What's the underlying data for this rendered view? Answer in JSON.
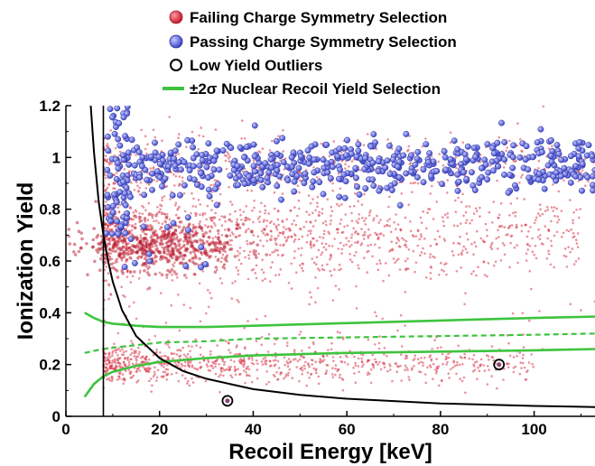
{
  "chart_data": {
    "type": "scatter",
    "title": "",
    "xlabel": "Recoil Energy [keV]",
    "ylabel": "Ionization Yield",
    "xlim": [
      0,
      113
    ],
    "ylim": [
      0,
      1.2
    ],
    "xticks": [
      0,
      20,
      40,
      60,
      80,
      100
    ],
    "yticks": [
      0,
      0.2,
      0.4,
      0.6,
      0.8,
      1,
      1.2
    ],
    "grid": false,
    "legend_position": "top",
    "legend": [
      {
        "label": "Failing Charge Symmetry Selection",
        "marker": "red-dot",
        "color": "#d9394a"
      },
      {
        "label": "Passing Charge Symmetry Selection",
        "marker": "blue-dot",
        "color": "#6b74e8"
      },
      {
        "label": "Low Yield Outliers",
        "marker": "open-circle",
        "color": "#000000"
      },
      {
        "label": "±2σ Nuclear Recoil Yield Selection",
        "marker": "green-line",
        "color": "#3ec43e"
      }
    ],
    "threshold_energy_keV": 8,
    "nr_band": {
      "x": [
        4,
        6,
        8,
        10,
        15,
        20,
        30,
        40,
        60,
        80,
        100,
        113
      ],
      "upper": [
        0.4,
        0.38,
        0.365,
        0.358,
        0.35,
        0.345,
        0.345,
        0.35,
        0.36,
        0.37,
        0.38,
        0.385
      ],
      "center": [
        0.245,
        0.253,
        0.26,
        0.265,
        0.275,
        0.285,
        0.29,
        0.3,
        0.305,
        0.31,
        0.315,
        0.32
      ],
      "lower": [
        0.075,
        0.125,
        0.155,
        0.172,
        0.195,
        0.21,
        0.225,
        0.235,
        0.245,
        0.25,
        0.255,
        0.26
      ]
    },
    "threshold_curve": {
      "x": [
        5.3,
        6,
        7,
        8,
        9,
        10,
        12,
        15,
        20,
        25,
        30,
        40,
        50,
        60,
        80,
        100,
        113
      ],
      "y": [
        1.2,
        1.02,
        0.83,
        0.7,
        0.6,
        0.52,
        0.41,
        0.31,
        0.225,
        0.175,
        0.145,
        0.105,
        0.083,
        0.068,
        0.05,
        0.04,
        0.036
      ]
    },
    "outliers": [
      {
        "x": 34.5,
        "y": 0.06
      },
      {
        "x": 92.5,
        "y": 0.2
      }
    ],
    "failing_regions": [
      {
        "xrange": [
          8,
          110
        ],
        "ycenter": 0.7,
        "yspread": 0.08,
        "weight": 0.45
      },
      {
        "xrange": [
          8,
          100
        ],
        "ycenter": 0.2,
        "yspread": 0.035,
        "weight": 0.35
      },
      {
        "xrange": [
          8,
          113
        ],
        "ycenter": 0.97,
        "yspread": 0.07,
        "weight": 0.2
      }
    ],
    "passing_band": {
      "xrange": [
        10,
        113
      ],
      "ycenter": 0.97,
      "yspread": 0.05
    }
  }
}
